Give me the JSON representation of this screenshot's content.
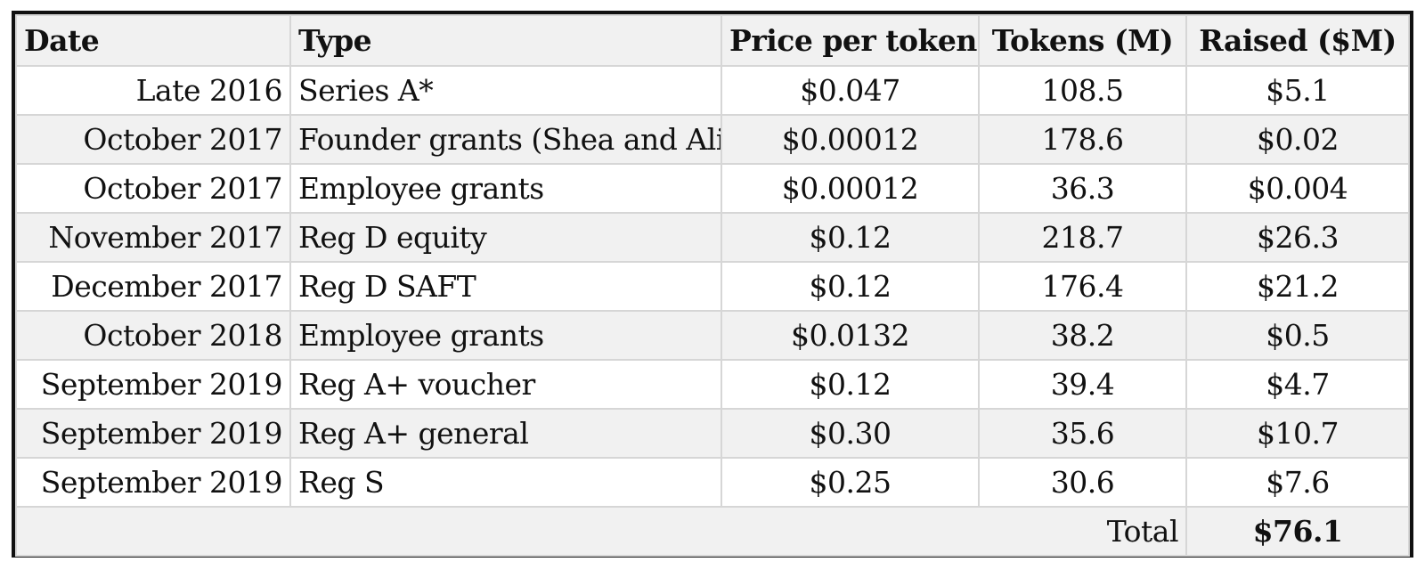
{
  "table": {
    "headers": {
      "date": "Date",
      "type": "Type",
      "price": "Price per token",
      "tokens": "Tokens (M)",
      "raised": "Raised ($M)"
    },
    "rows": [
      {
        "date": "Late 2016",
        "type": "Series A*",
        "price": "$0.047",
        "tokens": "108.5",
        "raised": "$5.1"
      },
      {
        "date": "October 2017",
        "type": "Founder grants (Shea and Ali)",
        "price": "$0.00012",
        "tokens": "178.6",
        "raised": "$0.02"
      },
      {
        "date": "October 2017",
        "type": "Employee grants",
        "price": "$0.00012",
        "tokens": "36.3",
        "raised": "$0.004"
      },
      {
        "date": "November 2017",
        "type": "Reg D equity",
        "price": "$0.12",
        "tokens": "218.7",
        "raised": "$26.3"
      },
      {
        "date": "December 2017",
        "type": "Reg D SAFT",
        "price": "$0.12",
        "tokens": "176.4",
        "raised": "$21.2"
      },
      {
        "date": "October 2018",
        "type": "Employee grants",
        "price": "$0.0132",
        "tokens": "38.2",
        "raised": "$0.5"
      },
      {
        "date": "September 2019",
        "type": "Reg A+ voucher",
        "price": "$0.12",
        "tokens": "39.4",
        "raised": "$4.7"
      },
      {
        "date": "September 2019",
        "type": "Reg A+ general",
        "price": "$0.30",
        "tokens": "35.6",
        "raised": "$10.7"
      },
      {
        "date": "September 2019",
        "type": "Reg S",
        "price": "$0.25",
        "tokens": "30.6",
        "raised": "$7.6"
      }
    ],
    "total": {
      "label": "Total",
      "value": "$76.1"
    }
  }
}
